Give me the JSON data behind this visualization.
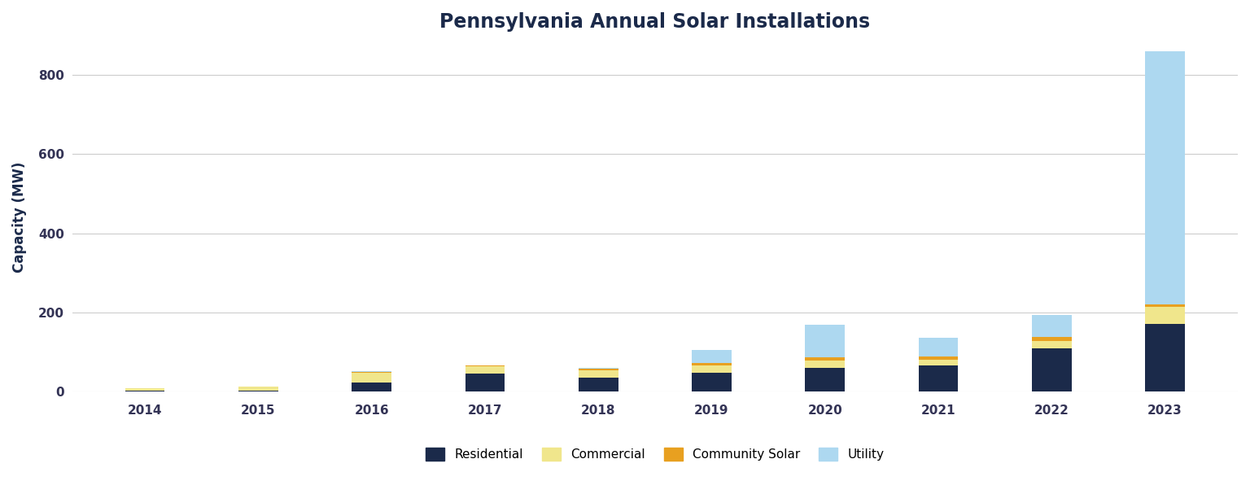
{
  "years": [
    "2014",
    "2015",
    "2016",
    "2017",
    "2018",
    "2019",
    "2020",
    "2021",
    "2022",
    "2023"
  ],
  "residential": [
    2,
    3,
    22,
    45,
    35,
    48,
    60,
    65,
    110,
    170
  ],
  "commercial": [
    7,
    9,
    25,
    18,
    18,
    18,
    18,
    15,
    18,
    45
  ],
  "community_solar": [
    0,
    0,
    2,
    3,
    4,
    5,
    8,
    8,
    10,
    5
  ],
  "utility": [
    0,
    0,
    2,
    0,
    3,
    33,
    82,
    48,
    55,
    640
  ],
  "colors": {
    "residential": "#1B2A4A",
    "commercial": "#F0E68C",
    "community_solar": "#E8A020",
    "utility": "#ADD8F0"
  },
  "title": "Pennsylvania Annual Solar Installations",
  "ylabel": "Capacity (MW)",
  "title_color": "#1B2A4A",
  "axis_label_color": "#1B2A4A",
  "tick_color": "#333355",
  "background_color": "#FFFFFF",
  "grid_color": "#CCCCCC",
  "legend_labels": [
    "Residential",
    "Commercial",
    "Community Solar",
    "Utility"
  ],
  "yticks": [
    0,
    200,
    400,
    600,
    800
  ],
  "ylim": [
    0,
    880
  ],
  "bar_width": 0.35
}
